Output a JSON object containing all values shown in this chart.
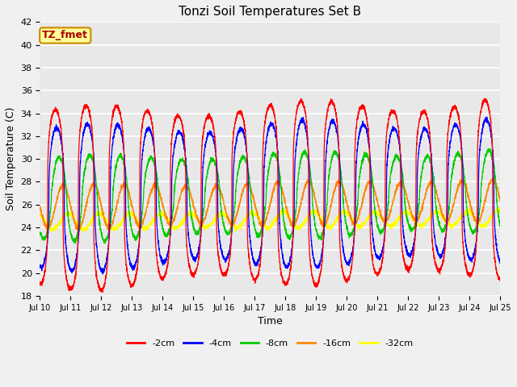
{
  "title": "Tonzi Soil Temperatures Set B",
  "xlabel": "Time",
  "ylabel": "Soil Temperature (C)",
  "ylim": [
    18,
    42
  ],
  "yticks": [
    18,
    20,
    22,
    24,
    26,
    28,
    30,
    32,
    34,
    36,
    38,
    40,
    42
  ],
  "series": [
    {
      "label": "-2cm",
      "color": "#ff0000"
    },
    {
      "label": "-4cm",
      "color": "#0000ff"
    },
    {
      "label": "-8cm",
      "color": "#00cc00"
    },
    {
      "label": "-16cm",
      "color": "#ff8800"
    },
    {
      "label": "-32cm",
      "color": "#ffff00"
    }
  ],
  "annotation_label": "TZ_fmet",
  "annotation_bg": "#ffff99",
  "annotation_border": "#cc8800",
  "annotation_text_color": "#aa0000",
  "fig_bg": "#f0f0f0",
  "plot_bg": "#e8e8e8",
  "grid_color": "#ffffff",
  "n_days": 15,
  "start_day": 10,
  "points_per_day": 288,
  "base_temps": [
    26.5,
    26.5,
    26.5,
    25.8,
    24.5
  ],
  "amplitudes": [
    7.5,
    6.0,
    3.5,
    1.8,
    0.65
  ],
  "phase_shifts": [
    0.0,
    0.04,
    0.12,
    0.25,
    0.42
  ],
  "trend_slopes": [
    0.06,
    0.05,
    0.04,
    0.035,
    0.02
  ],
  "sharpness": [
    3.5,
    2.5,
    1.5,
    1.0,
    1.0
  ]
}
